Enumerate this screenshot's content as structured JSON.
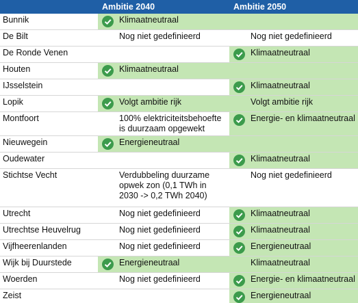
{
  "header": {
    "columns": [
      "Ambitie 2040",
      "Ambitie 2050"
    ]
  },
  "rows": [
    {
      "name": "Bunnik",
      "a2040": {
        "text": "Klimaatneutraal",
        "check": true,
        "green": true
      },
      "a2050": {
        "check": false,
        "green": true
      }
    },
    {
      "name": "De Bilt",
      "a2040": {
        "text": "Nog niet gedefinieerd",
        "check": false,
        "green": false
      },
      "a2050": {
        "text": "Nog niet gedefinieerd",
        "check": false,
        "green": false
      }
    },
    {
      "name": "De Ronde Venen",
      "a2040": {
        "check": false,
        "green": false
      },
      "a2050": {
        "text": "Klimaatneutraal",
        "check": true,
        "green": true
      }
    },
    {
      "name": "Houten",
      "a2040": {
        "text": "Klimaatneutraal",
        "check": true,
        "green": true
      },
      "a2050": {
        "check": false,
        "green": true
      }
    },
    {
      "name": "IJsselstein",
      "a2040": {
        "check": false,
        "green": false
      },
      "a2050": {
        "text": "Klimaatneutraal",
        "check": true,
        "green": true
      }
    },
    {
      "name": "Lopik",
      "a2040": {
        "text": "Volgt ambitie rijk",
        "check": true,
        "green": true
      },
      "a2050": {
        "text": "Volgt ambitie rijk",
        "check": false,
        "green": true
      }
    },
    {
      "name": "Montfoort",
      "a2040": {
        "text": "100% elektriciteitsbehoefte is duurzaam opgewekt",
        "check": false,
        "green": false
      },
      "a2050": {
        "text": "Energie- en klimaatneutraal",
        "check": true,
        "green": true
      }
    },
    {
      "name": "Nieuwegein",
      "a2040": {
        "text": "Energieneutraal",
        "check": true,
        "green": true
      },
      "a2050": {
        "check": false,
        "green": true
      }
    },
    {
      "name": "Oudewater",
      "a2040": {
        "check": false,
        "green": false
      },
      "a2050": {
        "text": "Klimaatneutraal",
        "check": true,
        "green": true
      }
    },
    {
      "name": "Stichtse Vecht",
      "a2040": {
        "text": "Verdubbeling duurzame opwek zon (0,1 TWh in 2030 -> 0,2 TWh 2040)",
        "check": false,
        "green": false
      },
      "a2050": {
        "text": "Nog niet gedefinieerd",
        "check": false,
        "green": false
      }
    },
    {
      "name": "Utrecht",
      "a2040": {
        "text": "Nog niet gedefinieerd",
        "check": false,
        "green": false
      },
      "a2050": {
        "text": "Klimaatneutraal",
        "check": true,
        "green": true
      }
    },
    {
      "name": "Utrechtse Heuvelrug",
      "a2040": {
        "text": "Nog niet gedefinieerd",
        "check": false,
        "green": false
      },
      "a2050": {
        "text": "Klimaatneutraal",
        "check": true,
        "green": true
      }
    },
    {
      "name": "Vijfheerenlanden",
      "a2040": {
        "text": "Nog niet gedefinieerd",
        "check": false,
        "green": false
      },
      "a2050": {
        "text": "Energieneutraal",
        "check": true,
        "green": true
      }
    },
    {
      "name": "Wijk bij Duurstede",
      "a2040": {
        "text": "Energieneutraal",
        "check": true,
        "green": true
      },
      "a2050": {
        "text": "Klimaatneutraal",
        "check": false,
        "green": true
      }
    },
    {
      "name": "Woerden",
      "a2040": {
        "text": "Nog niet gedefinieerd",
        "check": false,
        "green": false
      },
      "a2050": {
        "text": "Energie- en klimaatneutraal",
        "check": true,
        "green": true
      }
    },
    {
      "name": "Zeist",
      "a2040": {
        "check": false,
        "green": false
      },
      "a2050": {
        "text": "Energieneutraal",
        "check": true,
        "green": true
      }
    }
  ]
}
